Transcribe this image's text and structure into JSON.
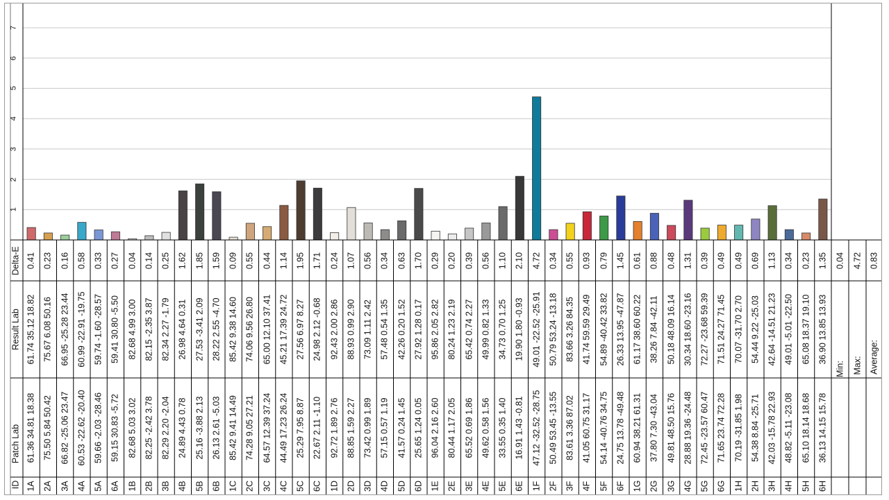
{
  "colors": {
    "grid": "#c8c8c8",
    "axis": "#000000"
  },
  "table_headers": {
    "id": "ID",
    "patch_lab": "Patch Lab",
    "result_lab": "Result Lab",
    "delta_e": "Delta-E"
  },
  "summary": {
    "min_label": "Min:",
    "max_label": "Max:",
    "average_label": "Average:",
    "min_value": "0.04",
    "max_value": "4.72",
    "average_value": "0.83"
  },
  "chart_data": {
    "type": "bar",
    "title": "",
    "xlabel": "",
    "ylabel": "",
    "ylim": [
      0,
      7.8
    ],
    "yticks": [
      "1",
      "2",
      "3",
      "4",
      "5",
      "6",
      "7"
    ],
    "grid": true,
    "categories": [
      "1A",
      "2A",
      "3A",
      "4A",
      "5A",
      "6A",
      "1B",
      "2B",
      "3B",
      "4B",
      "5B",
      "6B",
      "1C",
      "2C",
      "3C",
      "4C",
      "5C",
      "6C",
      "1D",
      "2D",
      "3D",
      "4D",
      "5D",
      "6D",
      "1E",
      "2E",
      "3E",
      "4E",
      "5E",
      "6E",
      "1F",
      "2F",
      "3F",
      "4F",
      "5F",
      "6F",
      "1G",
      "2G",
      "3G",
      "4G",
      "5G",
      "6G",
      "1H",
      "2H",
      "3H",
      "4H",
      "5H",
      "6H"
    ],
    "values": [
      0.41,
      0.23,
      0.16,
      0.58,
      0.33,
      0.27,
      0.04,
      0.14,
      0.25,
      1.62,
      1.85,
      1.59,
      0.09,
      0.55,
      0.44,
      1.14,
      1.95,
      1.71,
      0.24,
      1.07,
      0.56,
      0.34,
      0.63,
      1.7,
      0.29,
      0.2,
      0.39,
      0.56,
      1.1,
      2.1,
      4.72,
      0.34,
      0.55,
      0.93,
      0.79,
      1.45,
      0.61,
      0.88,
      0.48,
      1.31,
      0.39,
      0.49,
      0.49,
      0.69,
      1.13,
      0.34,
      0.23,
      1.35
    ],
    "delta_e_labels": [
      "0.41",
      "0.23",
      "0.16",
      "0.58",
      "0.33",
      "0.27",
      "0.04",
      "0.14",
      "0.25",
      "1.62",
      "1.85",
      "1.59",
      "0.09",
      "0.55",
      "0.44",
      "1.14",
      "1.95",
      "1.71",
      "0.24",
      "1.07",
      "0.56",
      "0.34",
      "0.63",
      "1.70",
      "0.29",
      "0.20",
      "0.39",
      "0.56",
      "1.10",
      "2.10",
      "4.72",
      "0.34",
      "0.55",
      "0.93",
      "0.79",
      "1.45",
      "0.61",
      "0.88",
      "0.48",
      "1.31",
      "0.39",
      "0.49",
      "0.49",
      "0.69",
      "1.13",
      "0.34",
      "0.23",
      "1.35"
    ],
    "bar_colors": [
      "#d06a6a",
      "#d6a052",
      "#9ccf9c",
      "#3aa8c8",
      "#7a98d6",
      "#c07a96",
      "#d9d9d9",
      "#bdbdbd",
      "#e0e0e0",
      "#4a4346",
      "#3c413d",
      "#4a4652",
      "#e8e0d8",
      "#cfa57e",
      "#d6aa72",
      "#8a5a42",
      "#4f3c30",
      "#3c3b3d",
      "#f2eee8",
      "#e2ded8",
      "#bdbab6",
      "#8e8c8a",
      "#6a6a6a",
      "#4a4a4a",
      "#f6f4f2",
      "#ececec",
      "#c6c6c6",
      "#9a9a9a",
      "#6a6a6a",
      "#383838",
      "#0f7a9a",
      "#cc4f96",
      "#f2d21c",
      "#c8283a",
      "#3e9a48",
      "#2a3c9a",
      "#e4802e",
      "#4a62b8",
      "#cc4a5c",
      "#5a3a7a",
      "#9acb3e",
      "#eeaa2e",
      "#62b8b0",
      "#8e86c2",
      "#5a6e3a",
      "#4a6a9a",
      "#d68a6a",
      "#7a5848"
    ],
    "patch_lab": [
      "61.36 34.81 18.38",
      "75.50 5.84 50.42",
      "66.82 -25.06 23.47",
      "60.53 -22.62 -20.40",
      "59.66 -2.03 -28.46",
      "59.15 30.83 -5.72",
      "82.68 5.03 3.02",
      "82.25 -2.42 3.78",
      "82.29 2.20 -2.04",
      "24.89 4.43 0.78",
      "25.16 -3.88 2.13",
      "26.13 2.61 -5.03",
      "85.42 9.41 14.49",
      "74.28 9.05 27.21",
      "64.57 12.39 37.24",
      "44.49 17.23 26.24",
      "25.29 7.95 8.87",
      "22.67 2.11 -1.10",
      "92.72 1.89 2.76",
      "88.85 1.59 2.27",
      "73.42 0.99 1.89",
      "57.15 0.57 1.19",
      "41.57 0.24 1.45",
      "25.65 1.24 0.05",
      "96.04 2.16 2.60",
      "80.44 1.17 2.05",
      "65.52 0.69 1.86",
      "49.62 0.58 1.56",
      "33.55 0.35 1.40",
      "16.91 1.43 -0.81",
      "47.12 -32.52 -28.75",
      "50.49 53.45 -13.55",
      "83.61 3.36 87.02",
      "41.05 60.75 31.17",
      "54.14 -40.76 34.75",
      "24.75 13.78 -49.48",
      "60.94 38.21 61.31",
      "37.80 7.30 -43.04",
      "49.81 48.50 15.76",
      "28.88 19.36 -24.48",
      "72.45 -23.57 60.47",
      "71.65 23.74 72.28",
      "70.19 -31.85 1.98",
      "54.38 8.84 -25.71",
      "42.03 -15.78 22.93",
      "48.82 -5.11 -23.08",
      "65.10 18.14 18.68",
      "36.13 14.15 15.78"
    ],
    "result_lab": [
      "61.74 35.12 18.82",
      "75.67 6.08 50.16",
      "66.95 -25.28 23.44",
      "60.99 -22.91 -19.75",
      "59.74 -1.60 -28.57",
      "59.41 30.80 -5.50",
      "82.68 4.99 3.00",
      "82.15 -2.35 3.87",
      "82.34 2.27 -1.79",
      "26.98 4.64 0.31",
      "27.53 -3.41 2.09",
      "28.22 2.55 -4.70",
      "85.42 9.38 14.60",
      "74.06 9.56 26.80",
      "65.00 12.10 37.41",
      "45.21 17.39 24.72",
      "27.56 6.97 8.27",
      "24.98 2.12 -0.68",
      "92.43 2.00 2.86",
      "88.93 0.99 2.90",
      "73.09 1.11 2.42",
      "57.48 0.54 1.35",
      "42.26 0.20 1.52",
      "27.92 1.28 0.17",
      "95.86 2.05 2.82",
      "80.24 1.23 2.19",
      "65.42 0.74 2.27",
      "49.99 0.82 1.33",
      "34.73 0.70 1.25",
      "19.90 1.80 -0.93",
      "49.01 -22.52 -25.91",
      "50.79 53.24 -13.18",
      "83.66 3.26 84.35",
      "41.74 59.59 29.49",
      "54.89 -40.42 33.82",
      "26.33 13.95 -47.87",
      "61.17 38.60 60.22",
      "38.26 7.84 -42.11",
      "50.18 48.09 16.14",
      "30.34 18.60 -23.16",
      "72.27 -23.68 59.39",
      "71.51 24.27 71.45",
      "70.07 -31.70 2.70",
      "54.44 9.22 -25.03",
      "42.64 -14.51 21.23",
      "49.01 -5.01 -22.50",
      "65.08 18.37 19.10",
      "36.90 13.85 13.93"
    ]
  }
}
